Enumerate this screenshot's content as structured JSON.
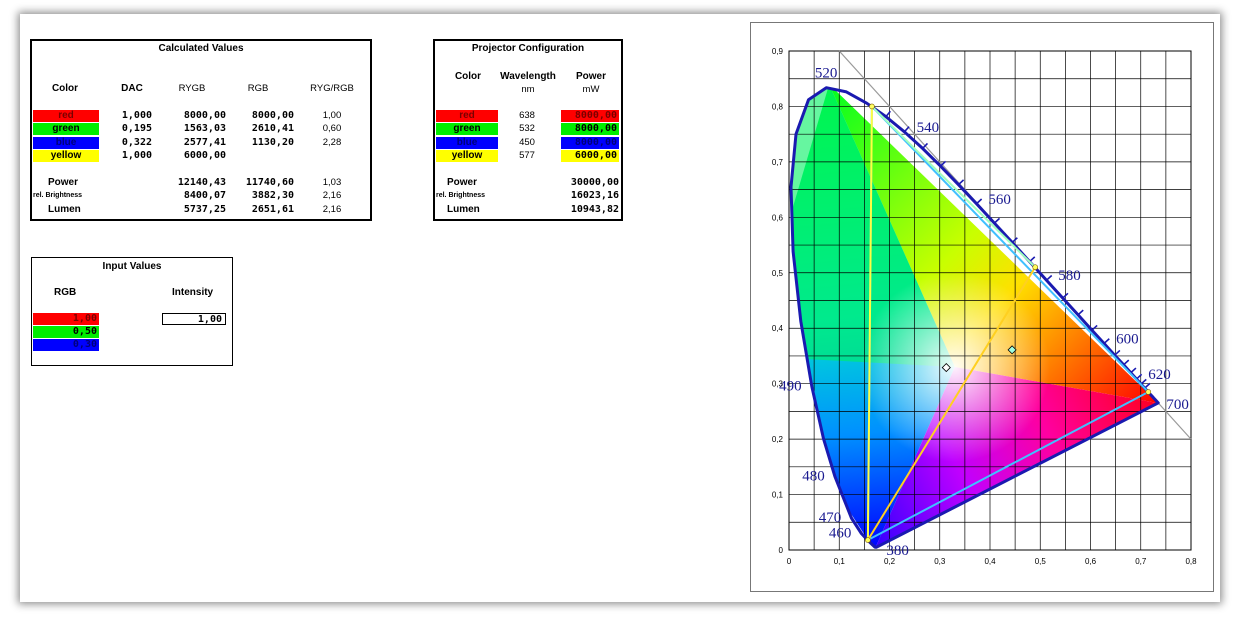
{
  "calculated": {
    "title": "Calculated Values",
    "headers": [
      "Color",
      "DAC",
      "RYGB",
      "RGB",
      "RYG/RGB"
    ],
    "rows": [
      {
        "color": "red",
        "color_hex": "#ff0000",
        "text_hex": "#7a0000",
        "dac": "1,000",
        "rygb": "8000,00",
        "rgb": "8000,00",
        "ratio": "1,00"
      },
      {
        "color": "green",
        "color_hex": "#00ee00",
        "text_hex": "#000000",
        "dac": "0,195",
        "rygb": "1563,03",
        "rgb": "2610,41",
        "ratio": "0,60"
      },
      {
        "color": "blue",
        "color_hex": "#0000ff",
        "text_hex": "#00007a",
        "dac": "0,322",
        "rygb": "2577,41",
        "rgb": "1130,20",
        "ratio": "2,28"
      },
      {
        "color": "yellow",
        "color_hex": "#ffff00",
        "text_hex": "#000000",
        "dac": "1,000",
        "rygb": "6000,00",
        "rgb": "",
        "ratio": ""
      }
    ],
    "summary": [
      {
        "label": "Power",
        "rygb": "12140,43",
        "rgb": "11740,60",
        "ratio": "1,03",
        "small": false
      },
      {
        "label": "rel. Brightness",
        "rygb": "8400,07",
        "rgb": "3882,30",
        "ratio": "2,16",
        "small": true
      },
      {
        "label": "Lumen",
        "rygb": "5737,25",
        "rgb": "2651,61",
        "ratio": "2,16",
        "small": false
      }
    ]
  },
  "projector": {
    "title": "Projector Configuration",
    "headers": {
      "color": "Color",
      "wavelength": "Wavelength",
      "wavelength_unit": "nm",
      "power": "Power",
      "power_unit": "mW"
    },
    "rows": [
      {
        "color": "red",
        "color_hex": "#ff0000",
        "text_hex": "#7a0000",
        "wavelength": "638",
        "power": "8000,00",
        "power_hex": "#ff0000",
        "power_text_hex": "#7a0000"
      },
      {
        "color": "green",
        "color_hex": "#00ee00",
        "text_hex": "#000000",
        "wavelength": "532",
        "power": "8000,00",
        "power_hex": "#00ee00",
        "power_text_hex": "#000000"
      },
      {
        "color": "blue",
        "color_hex": "#0000ff",
        "text_hex": "#00007a",
        "wavelength": "450",
        "power": "8000,00",
        "power_hex": "#0000ff",
        "power_text_hex": "#00007a"
      },
      {
        "color": "yellow",
        "color_hex": "#ffff00",
        "text_hex": "#000000",
        "wavelength": "577",
        "power": "6000,00",
        "power_hex": "#ffff00",
        "power_text_hex": "#000000"
      }
    ],
    "summary": [
      {
        "label": "Power",
        "value": "30000,00",
        "small": false
      },
      {
        "label": "rel. Brightness",
        "value": "16023,16",
        "small": true
      },
      {
        "label": "Lumen",
        "value": "10943,82",
        "small": false
      }
    ]
  },
  "inputs": {
    "title": "Input Values",
    "rgb_label": "RGB",
    "intensity_label": "Intensity",
    "intensity_value": "1,00",
    "rows": [
      {
        "value": "1,00",
        "color_hex": "#ff0000",
        "text_hex": "#7a0000"
      },
      {
        "value": "0,50",
        "color_hex": "#00ee00",
        "text_hex": "#000000"
      },
      {
        "value": "0,30",
        "color_hex": "#0000ff",
        "text_hex": "#00007a"
      }
    ]
  },
  "chart_data": {
    "type": "scatter",
    "description_kind": "CIE 1931 chromaticity diagram",
    "xlim": [
      0,
      0.8
    ],
    "ylim": [
      0,
      0.9
    ],
    "x_ticks": [
      "0",
      "0,1",
      "0,2",
      "0,3",
      "0,4",
      "0,5",
      "0,6",
      "0,7",
      "0,8"
    ],
    "y_ticks": [
      "0",
      "0,1",
      "0,2",
      "0,3",
      "0,4",
      "0,5",
      "0,6",
      "0,7",
      "0,8",
      "0,9"
    ],
    "grid": true,
    "wavelength_labels": [
      {
        "text": "460",
        "x": 0.144,
        "y": 0.03
      },
      {
        "text": "470",
        "x": 0.124,
        "y": 0.058
      },
      {
        "text": "480",
        "x": 0.091,
        "y": 0.133
      },
      {
        "text": "490",
        "x": 0.045,
        "y": 0.295
      },
      {
        "text": "520",
        "x": 0.074,
        "y": 0.834
      },
      {
        "text": "540",
        "x": 0.23,
        "y": 0.754
      },
      {
        "text": "560",
        "x": 0.373,
        "y": 0.624
      },
      {
        "text": "580",
        "x": 0.512,
        "y": 0.487
      },
      {
        "text": "600",
        "x": 0.627,
        "y": 0.372
      },
      {
        "text": "620",
        "x": 0.691,
        "y": 0.308
      },
      {
        "text": "700",
        "x": 0.735,
        "y": 0.265
      },
      {
        "text": "380",
        "x": 0.174,
        "y": 0.005
      }
    ],
    "primaries": [
      {
        "name": "red",
        "x": 0.715,
        "y": 0.285
      },
      {
        "name": "green",
        "x": 0.165,
        "y": 0.8
      },
      {
        "name": "blue",
        "x": 0.157,
        "y": 0.018
      },
      {
        "name": "yellow",
        "x": 0.49,
        "y": 0.51
      }
    ],
    "points": [
      {
        "name": "white",
        "x": 0.313,
        "y": 0.329
      },
      {
        "name": "mix",
        "x": 0.444,
        "y": 0.361
      }
    ]
  }
}
